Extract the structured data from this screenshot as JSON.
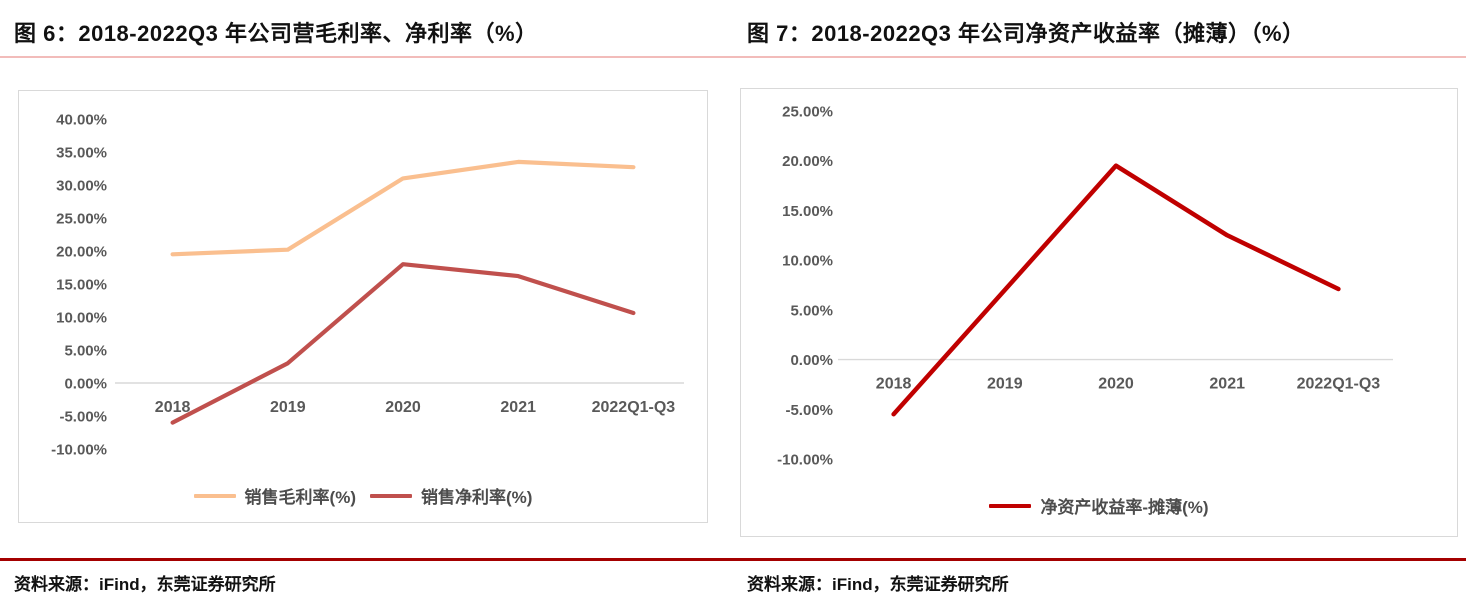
{
  "page": {
    "left": {
      "title": "图 6：2018-2022Q3 年公司营毛利率、净利率（%）",
      "source": "资料来源：iFind，东莞证券研究所"
    },
    "right": {
      "title": "图 7：2018-2022Q3 年公司净资产收益率（摊薄）（%）",
      "source": "资料来源：iFind，东莞证券研究所"
    }
  },
  "chart_data": [
    {
      "type": "line",
      "title": "图 6：2018-2022Q3 年公司营毛利率、净利率（%）",
      "categories": [
        "2018",
        "2019",
        "2020",
        "2021",
        "2022Q1-Q3"
      ],
      "series": [
        {
          "name": "销售毛利率(%)",
          "color": "#FABF8F",
          "values": [
            19.5,
            20.2,
            31.0,
            33.5,
            32.7
          ]
        },
        {
          "name": "销售净利率(%)",
          "color": "#C0504D",
          "values": [
            -6.0,
            3.0,
            18.0,
            16.2,
            10.6
          ]
        }
      ],
      "ylim": [
        -10,
        40
      ],
      "ystep": 5,
      "yticks": [
        40,
        35,
        30,
        25,
        20,
        15,
        10,
        5,
        0,
        -5,
        -10
      ],
      "ytick_format": "percent-2dp",
      "grid": "zero-line-only",
      "legend_position": "bottom"
    },
    {
      "type": "line",
      "title": "图 7：2018-2022Q3 年公司净资产收益率（摊薄）（%）",
      "categories": [
        "2018",
        "2019",
        "2020",
        "2021",
        "2022Q1-Q3"
      ],
      "series": [
        {
          "name": "净资产收益率-摊薄(%)",
          "color": "#C00000",
          "values": [
            -5.5,
            7.0,
            19.5,
            12.5,
            7.1
          ]
        }
      ],
      "ylim": [
        -10,
        25
      ],
      "ystep": 5,
      "yticks": [
        25,
        20,
        15,
        10,
        5,
        0,
        -5,
        -10
      ],
      "ytick_format": "percent-2dp",
      "grid": "zero-line-only",
      "legend_position": "bottom"
    }
  ],
  "colors": {
    "axis_text": "#595959",
    "zero_gridline": "#d9d9d9",
    "panel_border": "#d9d9d9",
    "title_rule": "#f2bcba",
    "footer_rule": "#a40000"
  }
}
